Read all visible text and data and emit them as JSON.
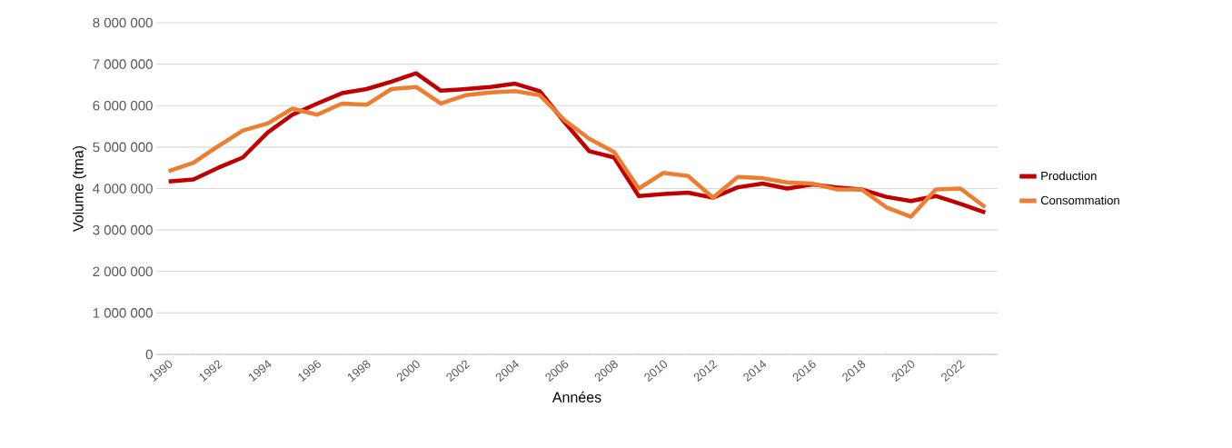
{
  "chart_data": {
    "type": "line",
    "xlabel": "Années",
    "ylabel": "Volume (tma)",
    "categories": [
      "1990",
      null,
      "1992",
      null,
      "1994",
      null,
      "1996",
      null,
      "1998",
      null,
      "2000",
      null,
      "2002",
      null,
      "2004",
      null,
      "2006",
      null,
      "2008",
      null,
      "2010",
      null,
      "2012",
      null,
      "2014",
      null,
      "2016",
      null,
      "2018",
      null,
      "2020",
      null,
      "2022",
      null
    ],
    "series": [
      {
        "name": "Production",
        "color": "#c00000",
        "values": [
          4170000,
          4220000,
          4500000,
          4750000,
          5350000,
          5780000,
          6050000,
          6300000,
          6400000,
          6580000,
          6780000,
          6360000,
          6400000,
          6450000,
          6530000,
          6350000,
          5600000,
          4900000,
          4750000,
          3820000,
          3870000,
          3900000,
          3780000,
          4030000,
          4120000,
          4000000,
          4100000,
          4030000,
          3980000,
          3800000,
          3700000,
          3820000,
          3630000,
          3420000
        ]
      },
      {
        "name": "Consommation",
        "color": "#ed7d31",
        "values": [
          4420000,
          4620000,
          5020000,
          5400000,
          5570000,
          5930000,
          5780000,
          6050000,
          6020000,
          6400000,
          6450000,
          6050000,
          6250000,
          6320000,
          6350000,
          6250000,
          5650000,
          5200000,
          4880000,
          4000000,
          4380000,
          4300000,
          3780000,
          4280000,
          4250000,
          4150000,
          4120000,
          3980000,
          3980000,
          3550000,
          3320000,
          3980000,
          4000000,
          3550000
        ]
      }
    ],
    "ylim": [
      0,
      8000000
    ],
    "yticks": [
      {
        "value": 0,
        "label": "0"
      },
      {
        "value": 1000000,
        "label": "1 000 000"
      },
      {
        "value": 2000000,
        "label": "2 000 000"
      },
      {
        "value": 3000000,
        "label": "3 000 000"
      },
      {
        "value": 4000000,
        "label": "4 000 000"
      },
      {
        "value": 5000000,
        "label": "5 000 000"
      },
      {
        "value": 6000000,
        "label": "6 000 000"
      },
      {
        "value": 7000000,
        "label": "7 000 000"
      },
      {
        "value": 8000000,
        "label": "8 000 000"
      }
    ],
    "grid": "y",
    "legend": "right",
    "marker": "none",
    "line_style": "solid"
  }
}
